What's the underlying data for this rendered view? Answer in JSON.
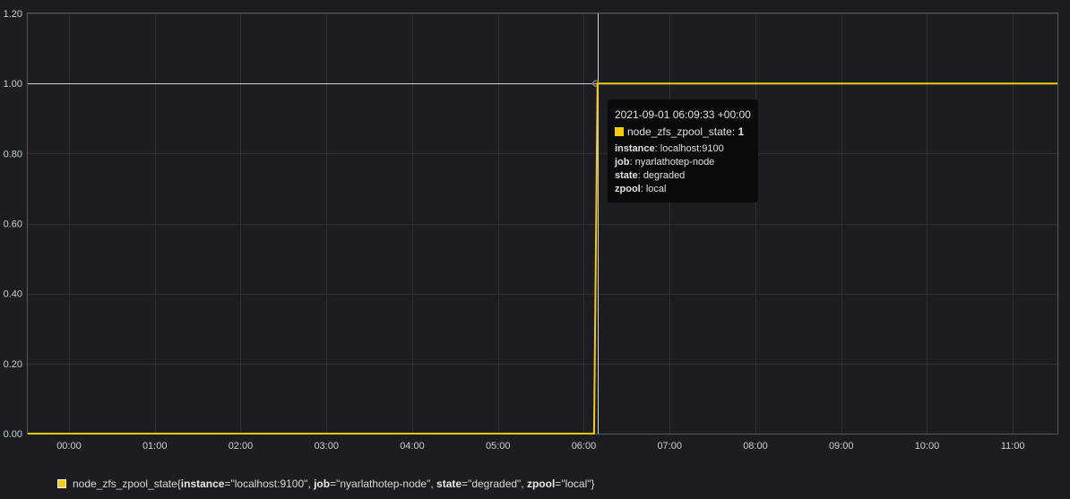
{
  "chart_data": {
    "type": "line",
    "y_ticks": [
      "0.00",
      "0.20",
      "0.40",
      "0.60",
      "0.80",
      "1.00",
      "1.20"
    ],
    "y_tick_values": [
      0,
      0.2,
      0.4,
      0.6,
      0.8,
      1.0,
      1.2
    ],
    "ylim": [
      0,
      1.2
    ],
    "x_ticks": [
      "00:00",
      "01:00",
      "02:00",
      "03:00",
      "04:00",
      "05:00",
      "06:00",
      "07:00",
      "08:00",
      "09:00",
      "10:00",
      "11:00"
    ],
    "x_tick_hours": [
      0,
      1,
      2,
      3,
      4,
      5,
      6,
      7,
      8,
      9,
      10,
      11
    ],
    "xlim_hours": [
      -0.48,
      11.52
    ],
    "grid": true,
    "series": [
      {
        "name": "node_zfs_zpool_state",
        "color": "#f2cc0c",
        "x_hours": [
          -0.48,
          6.12,
          6.16,
          11.52
        ],
        "values": [
          0,
          0,
          1,
          1
        ]
      }
    ],
    "crosshair": {
      "x_hours": 6.16,
      "y": 1.0
    }
  },
  "tooltip": {
    "time": "2021-09-01 06:09:33 +00:00",
    "series_name": "node_zfs_zpool_state",
    "series_value": "1",
    "labels": [
      {
        "key": "instance",
        "value": "localhost:9100"
      },
      {
        "key": "job",
        "value": "nyarlathotep-node"
      },
      {
        "key": "state",
        "value": "degraded"
      },
      {
        "key": "zpool",
        "value": "local"
      }
    ]
  },
  "legend": {
    "metric": "node_zfs_zpool_state",
    "open": "{",
    "close": "}",
    "labels": [
      {
        "key": "instance",
        "value": "\"localhost:9100\"",
        "sep": ", "
      },
      {
        "key": "job",
        "value": "\"nyarlathotep-node\"",
        "sep": ", "
      },
      {
        "key": "state",
        "value": "\"degraded\"",
        "sep": ", "
      },
      {
        "key": "zpool",
        "value": "\"local\"",
        "sep": ""
      }
    ]
  }
}
